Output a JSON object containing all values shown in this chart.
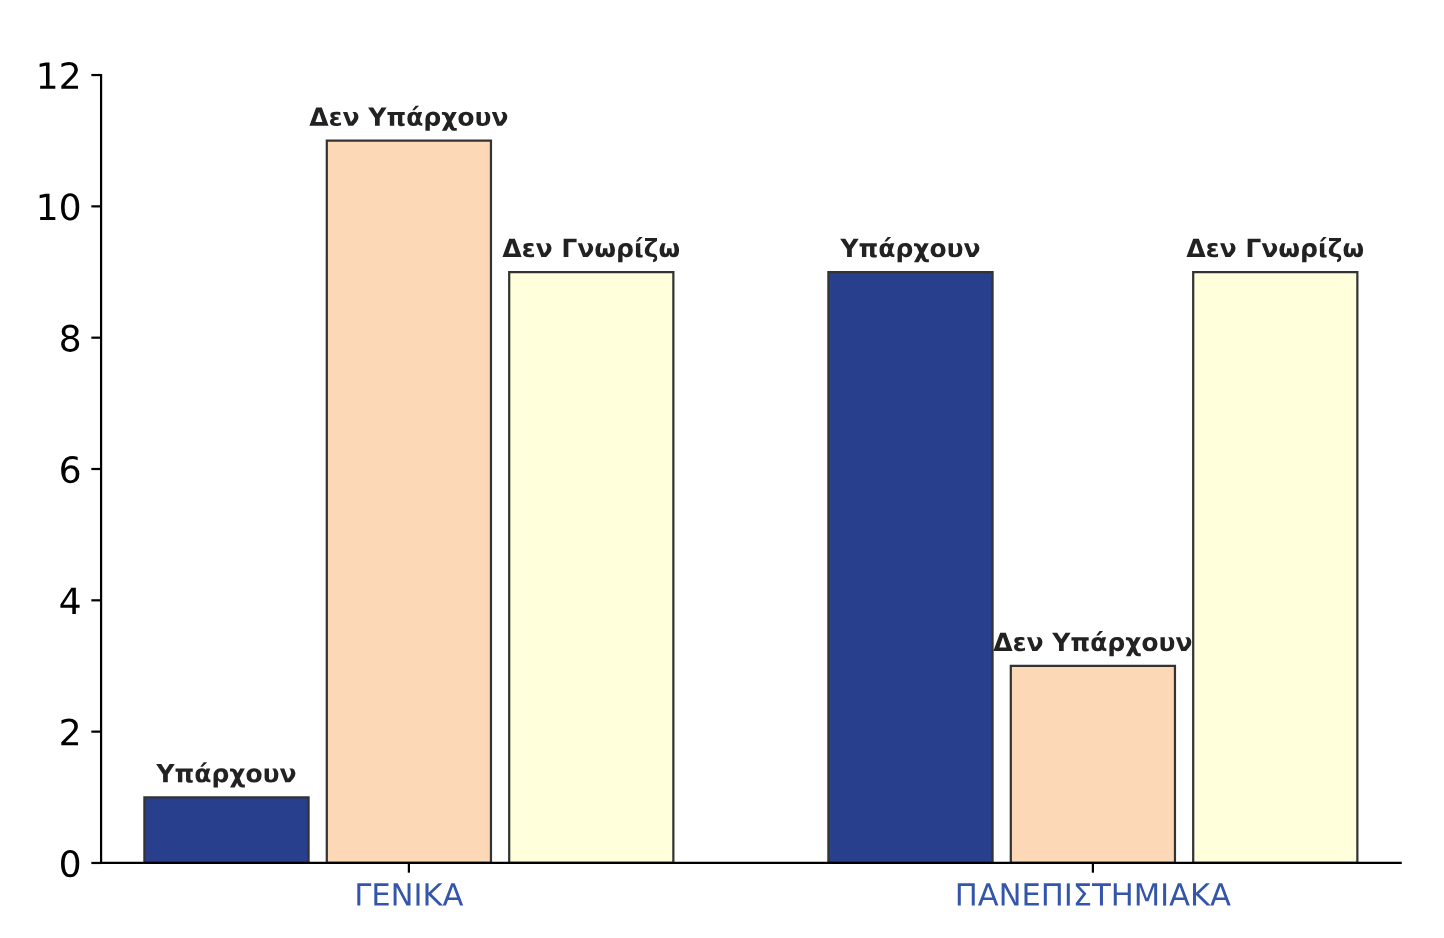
{
  "chart_data": {
    "type": "bar",
    "categories": [
      "ΓΕΝΙΚΑ",
      "ΠΑΝΕΠΙΣΤΗΜΙΑΚΑ"
    ],
    "series": [
      {
        "name": "Υπάρχουν",
        "color": "#273f8c",
        "values": [
          1,
          9
        ]
      },
      {
        "name": "Δεν Υπάρχουν",
        "color": "#fcd8b6",
        "values": [
          11,
          3
        ]
      },
      {
        "name": "Δεν Γνωρίζω",
        "color": "#ffffdc",
        "values": [
          9,
          9
        ]
      }
    ],
    "ylim": [
      0,
      12
    ],
    "yticks": [
      0,
      2,
      4,
      6,
      8,
      10,
      12
    ],
    "grid": false,
    "legend": false
  }
}
